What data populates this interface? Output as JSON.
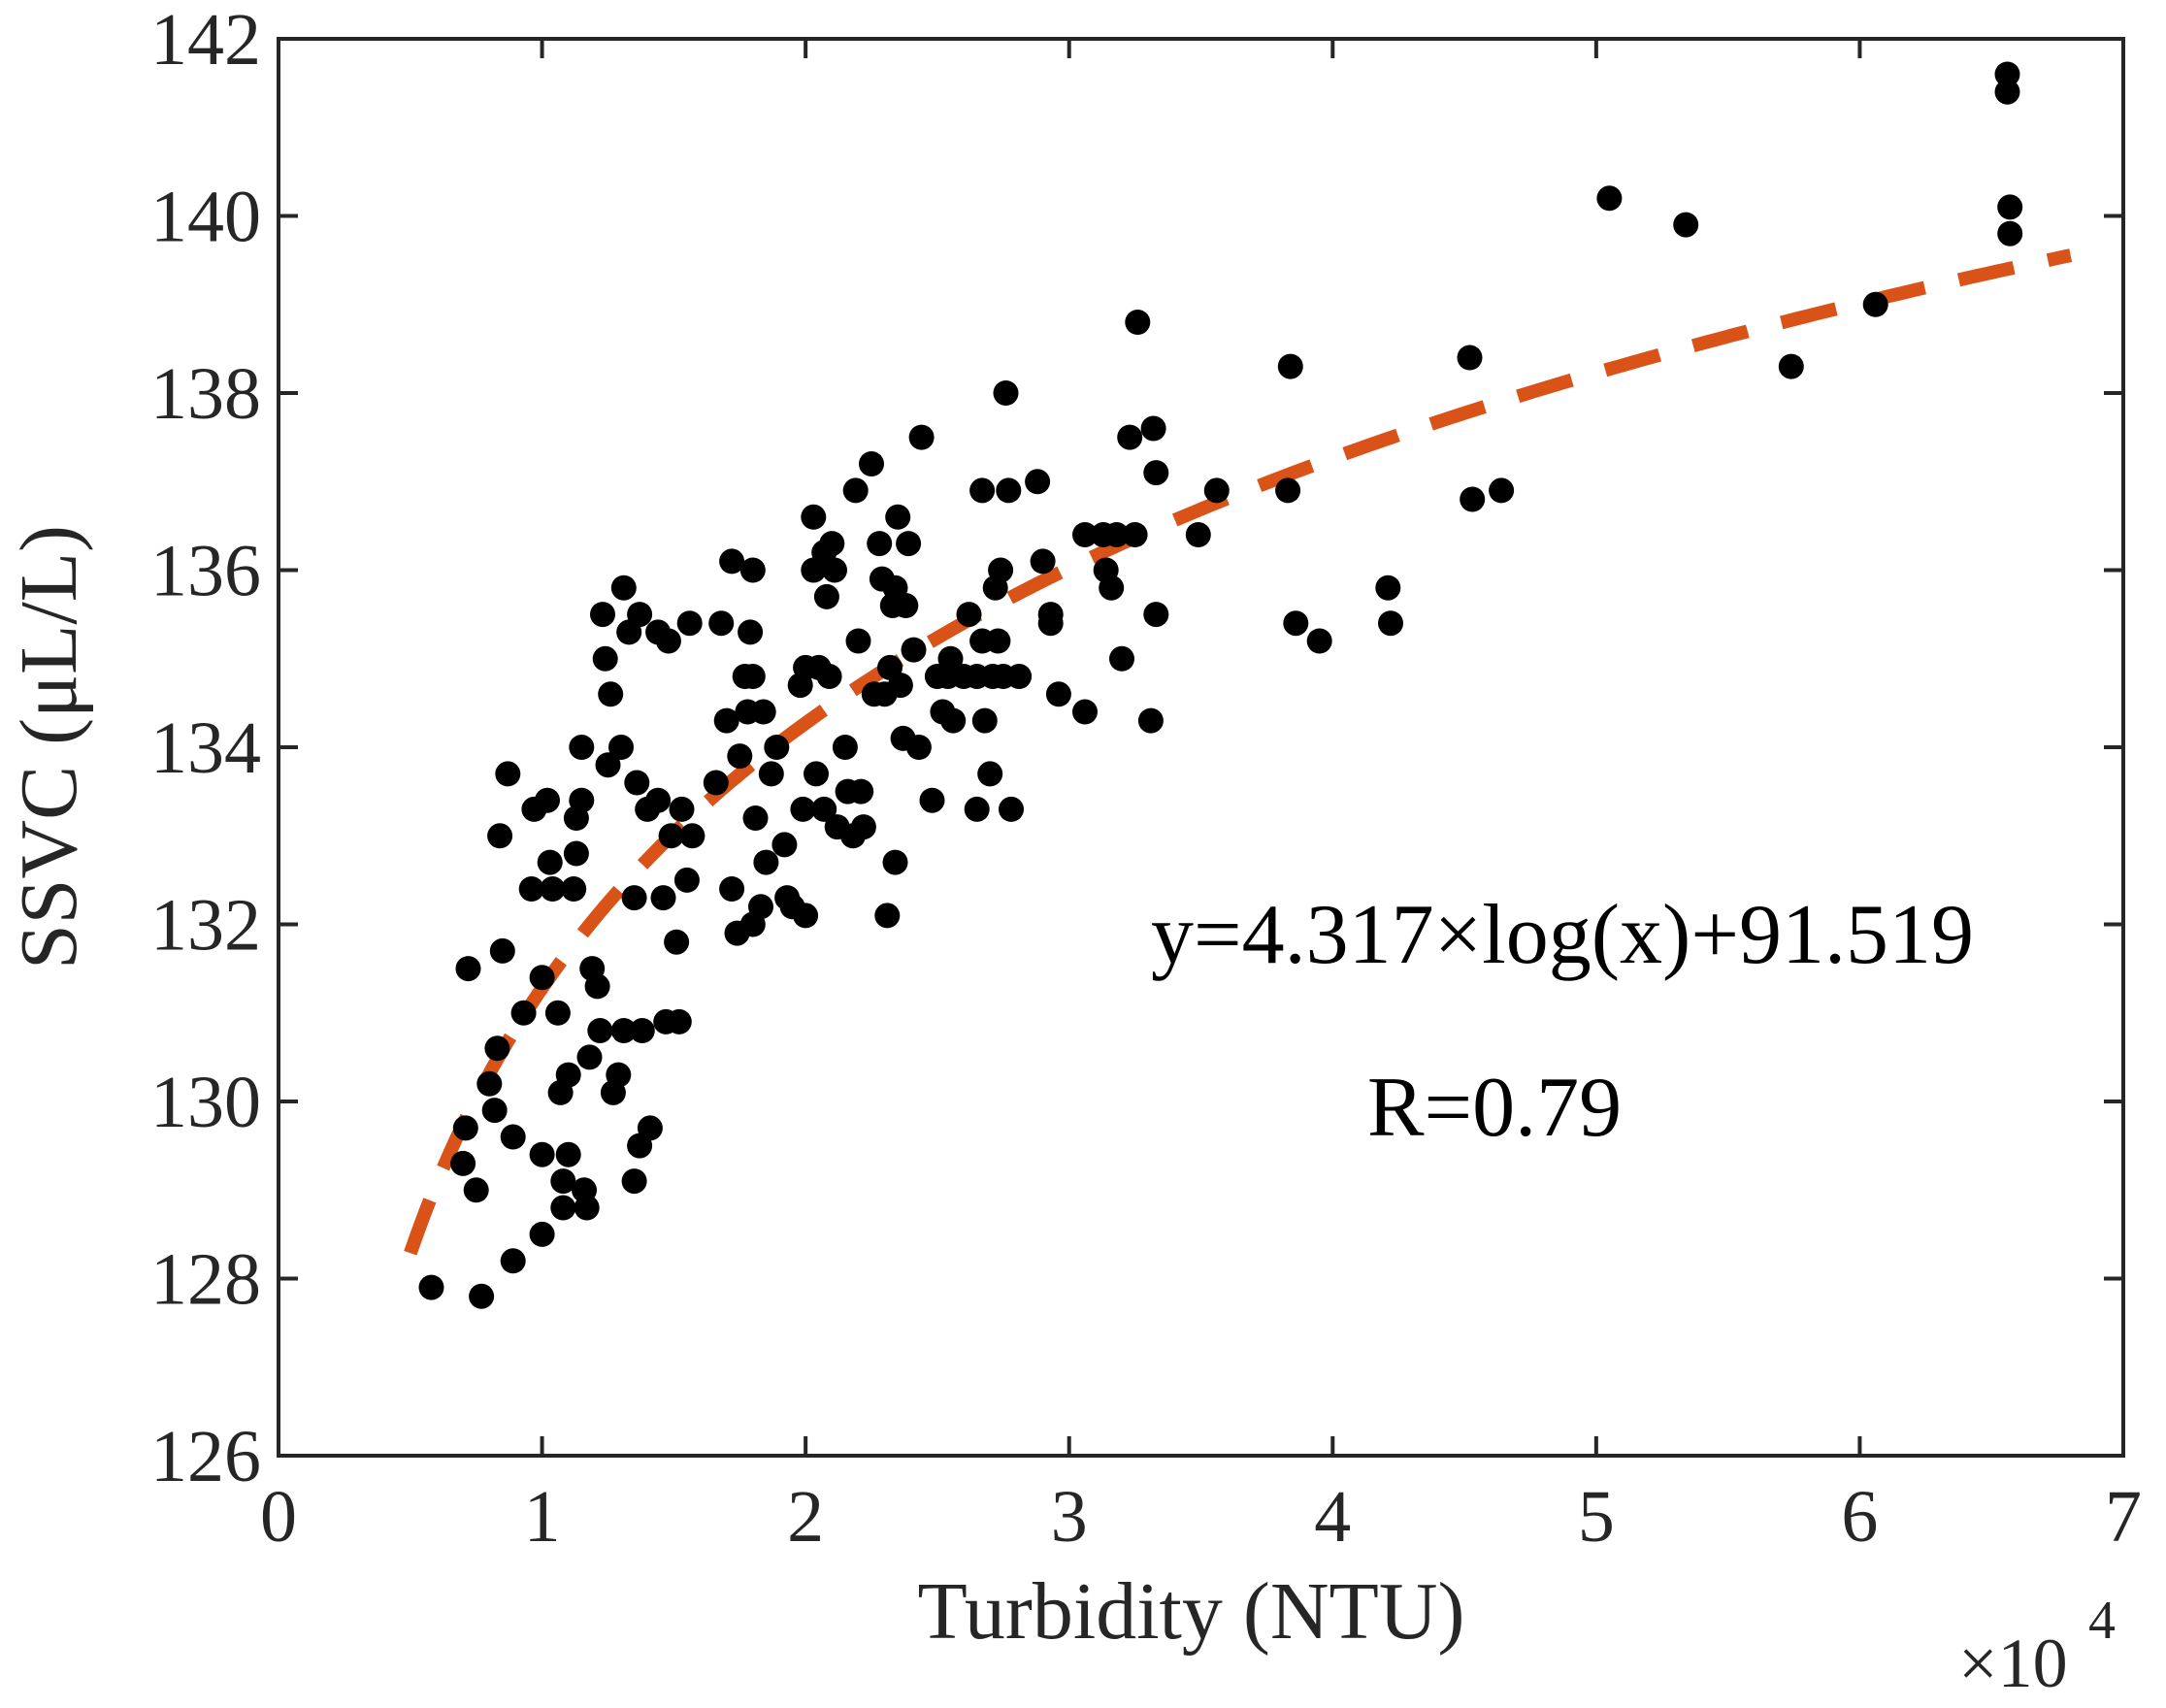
{
  "chart_data": {
    "type": "scatter",
    "title": "",
    "xlabel": "Turbidity (NTU)",
    "ylabel": "SSVC (μL/L)",
    "x_multiplier": "×10",
    "x_multiplier_exponent": "4",
    "xlim": [
      0,
      70000
    ],
    "ylim": [
      126,
      142
    ],
    "xticks": [
      0,
      10000,
      20000,
      30000,
      40000,
      50000,
      60000,
      70000
    ],
    "xtick_labels": [
      "0",
      "1",
      "2",
      "3",
      "4",
      "5",
      "6",
      "7"
    ],
    "yticks": [
      126,
      128,
      130,
      132,
      134,
      136,
      138,
      140,
      142
    ],
    "ytick_labels": [
      "126",
      "128",
      "130",
      "132",
      "134",
      "136",
      "138",
      "140",
      "142"
    ],
    "grid": false,
    "colors": {
      "points": "#000000",
      "fit_line": "#D95319",
      "axes": "#262626"
    },
    "annotations": {
      "equation": "y=4.317×log(x)+91.519",
      "r_value": "R=0.79"
    },
    "fit": {
      "equation_coefficients": {
        "a": 4.317,
        "b": 91.519
      },
      "x_range": [
        5000,
        68000
      ]
    },
    "points": [
      [
        5800,
        127.9
      ],
      [
        7700,
        127.8
      ],
      [
        7500,
        129.0
      ],
      [
        7000,
        129.3
      ],
      [
        7100,
        129.7
      ],
      [
        7200,
        131.5
      ],
      [
        8000,
        130.2
      ],
      [
        8200,
        129.9
      ],
      [
        8300,
        130.6
      ],
      [
        8500,
        131.7
      ],
      [
        8400,
        133.0
      ],
      [
        8700,
        133.7
      ],
      [
        8900,
        129.6
      ],
      [
        8900,
        128.2
      ],
      [
        9300,
        131.0
      ],
      [
        9600,
        132.4
      ],
      [
        9700,
        133.3
      ],
      [
        10000,
        131.4
      ],
      [
        10200,
        133.4
      ],
      [
        10000,
        129.4
      ],
      [
        10000,
        128.5
      ],
      [
        10300,
        132.7
      ],
      [
        10400,
        132.4
      ],
      [
        10600,
        131.0
      ],
      [
        10700,
        130.1
      ],
      [
        10800,
        129.1
      ],
      [
        10800,
        128.8
      ],
      [
        11000,
        129.4
      ],
      [
        11000,
        130.3
      ],
      [
        11200,
        132.4
      ],
      [
        11300,
        132.8
      ],
      [
        11300,
        133.2
      ],
      [
        11500,
        134.0
      ],
      [
        11500,
        133.4
      ],
      [
        11600,
        129.0
      ],
      [
        11700,
        128.8
      ],
      [
        11800,
        130.5
      ],
      [
        11900,
        131.5
      ],
      [
        12100,
        131.3
      ],
      [
        12200,
        130.8
      ],
      [
        12300,
        135.5
      ],
      [
        12400,
        135.0
      ],
      [
        12500,
        133.8
      ],
      [
        12600,
        134.6
      ],
      [
        12700,
        130.1
      ],
      [
        12900,
        130.3
      ],
      [
        13100,
        130.8
      ],
      [
        13000,
        134.0
      ],
      [
        13100,
        135.8
      ],
      [
        13300,
        135.3
      ],
      [
        13500,
        132.3
      ],
      [
        13600,
        133.6
      ],
      [
        13700,
        135.5
      ],
      [
        13500,
        129.1
      ],
      [
        13700,
        129.5
      ],
      [
        13800,
        130.8
      ],
      [
        14000,
        133.3
      ],
      [
        14100,
        129.7
      ],
      [
        14400,
        135.3
      ],
      [
        14400,
        133.4
      ],
      [
        14600,
        132.3
      ],
      [
        14700,
        130.9
      ],
      [
        14800,
        135.2
      ],
      [
        14900,
        133.0
      ],
      [
        15100,
        131.8
      ],
      [
        15200,
        130.9
      ],
      [
        15300,
        133.3
      ],
      [
        15500,
        132.5
      ],
      [
        15600,
        135.4
      ],
      [
        15700,
        133.0
      ],
      [
        16600,
        133.6
      ],
      [
        16800,
        135.4
      ],
      [
        17000,
        134.3
      ],
      [
        17200,
        136.1
      ],
      [
        17200,
        132.4
      ],
      [
        17400,
        131.9
      ],
      [
        17500,
        133.9
      ],
      [
        17700,
        134.8
      ],
      [
        17800,
        134.4
      ],
      [
        17900,
        135.3
      ],
      [
        18000,
        136.0
      ],
      [
        18000,
        132.0
      ],
      [
        18000,
        134.8
      ],
      [
        18100,
        133.2
      ],
      [
        18300,
        132.2
      ],
      [
        18400,
        134.4
      ],
      [
        18500,
        132.7
      ],
      [
        18700,
        133.7
      ],
      [
        18900,
        134.0
      ],
      [
        19200,
        132.9
      ],
      [
        19300,
        132.3
      ],
      [
        19500,
        132.2
      ],
      [
        19800,
        134.7
      ],
      [
        19900,
        133.3
      ],
      [
        20000,
        134.9
      ],
      [
        20000,
        132.1
      ],
      [
        20300,
        136.6
      ],
      [
        20300,
        136.0
      ],
      [
        20400,
        133.7
      ],
      [
        20500,
        134.9
      ],
      [
        20700,
        136.2
      ],
      [
        20700,
        133.3
      ],
      [
        20800,
        135.7
      ],
      [
        20900,
        134.8
      ],
      [
        21000,
        136.3
      ],
      [
        21100,
        136.0
      ],
      [
        21200,
        133.1
      ],
      [
        21500,
        134.0
      ],
      [
        21600,
        133.5
      ],
      [
        21800,
        133.0
      ],
      [
        21900,
        136.9
      ],
      [
        22000,
        135.2
      ],
      [
        22100,
        133.5
      ],
      [
        22200,
        133.1
      ],
      [
        22500,
        137.2
      ],
      [
        22600,
        134.6
      ],
      [
        22800,
        136.3
      ],
      [
        22900,
        135.9
      ],
      [
        23000,
        134.6
      ],
      [
        23100,
        132.1
      ],
      [
        23200,
        134.9
      ],
      [
        23300,
        135.6
      ],
      [
        23400,
        135.8
      ],
      [
        23400,
        132.7
      ],
      [
        23500,
        136.6
      ],
      [
        23600,
        134.7
      ],
      [
        23700,
        134.1
      ],
      [
        23800,
        135.6
      ],
      [
        23900,
        136.3
      ],
      [
        24100,
        135.1
      ],
      [
        24300,
        134.0
      ],
      [
        24400,
        137.5
      ],
      [
        24800,
        133.4
      ],
      [
        25000,
        134.8
      ],
      [
        25200,
        134.4
      ],
      [
        25400,
        134.8
      ],
      [
        25500,
        135.0
      ],
      [
        25600,
        134.3
      ],
      [
        26000,
        134.8
      ],
      [
        26200,
        135.5
      ],
      [
        26500,
        134.8
      ],
      [
        26500,
        133.3
      ],
      [
        26700,
        136.9
      ],
      [
        26700,
        135.2
      ],
      [
        26800,
        134.3
      ],
      [
        27000,
        133.7
      ],
      [
        27100,
        134.8
      ],
      [
        27200,
        135.8
      ],
      [
        27300,
        135.2
      ],
      [
        27400,
        136.0
      ],
      [
        27500,
        134.8
      ],
      [
        27600,
        138.0
      ],
      [
        27700,
        136.9
      ],
      [
        27800,
        133.3
      ],
      [
        28100,
        134.8
      ],
      [
        28800,
        137.0
      ],
      [
        29000,
        136.1
      ],
      [
        29300,
        135.4
      ],
      [
        29300,
        135.5
      ],
      [
        29600,
        134.6
      ],
      [
        30600,
        136.4
      ],
      [
        30600,
        134.4
      ],
      [
        31300,
        136.4
      ],
      [
        31400,
        136.0
      ],
      [
        31600,
        135.8
      ],
      [
        31800,
        136.4
      ],
      [
        32000,
        135.0
      ],
      [
        32300,
        137.5
      ],
      [
        32500,
        136.4
      ],
      [
        32600,
        138.8
      ],
      [
        33100,
        134.3
      ],
      [
        33200,
        137.6
      ],
      [
        33300,
        137.1
      ],
      [
        33300,
        135.5
      ],
      [
        34900,
        136.4
      ],
      [
        35600,
        136.9
      ],
      [
        38300,
        136.9
      ],
      [
        38400,
        138.3
      ],
      [
        38600,
        135.4
      ],
      [
        39500,
        135.2
      ],
      [
        42100,
        135.8
      ],
      [
        42200,
        135.4
      ],
      [
        45200,
        138.4
      ],
      [
        45300,
        136.8
      ],
      [
        46400,
        136.9
      ],
      [
        50500,
        140.2
      ],
      [
        53400,
        139.9
      ],
      [
        57400,
        138.3
      ],
      [
        60600,
        139.0
      ],
      [
        65600,
        141.6
      ],
      [
        65600,
        141.4
      ],
      [
        65700,
        140.1
      ],
      [
        65700,
        139.8
      ]
    ]
  }
}
